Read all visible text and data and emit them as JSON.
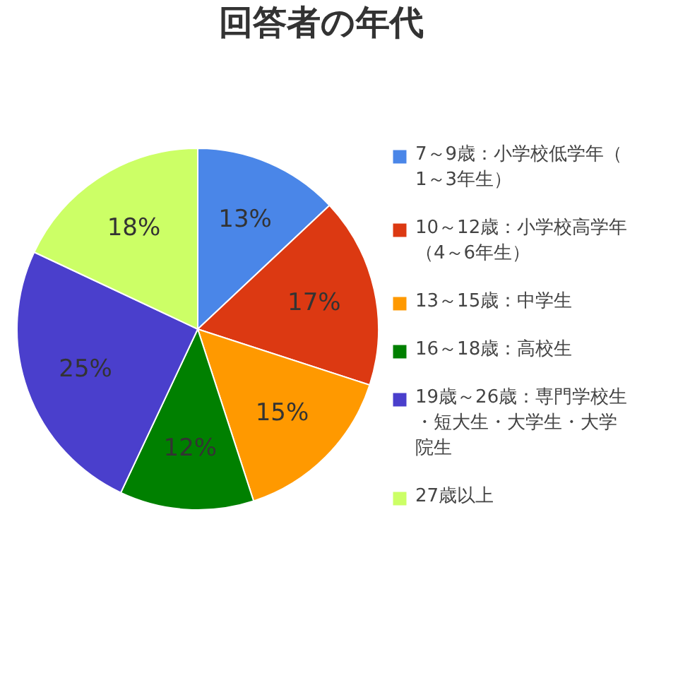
{
  "chart_data": {
    "type": "pie",
    "title": "回答者の年代",
    "categories": [
      "7～9歳：小学校低学年（1～3年生）",
      "10～12歳：小学校高学年（4～6年生）",
      "13～15歳：中学生",
      "16～18歳：高校生",
      "19歳～26歳：専門学校生・短大生・大学生・大学院生",
      "27歳以上"
    ],
    "values": [
      13,
      17,
      15,
      12,
      25,
      18
    ],
    "colors": [
      "#4a86e8",
      "#dc3912",
      "#ff9900",
      "#008000",
      "#4a3fcc",
      "#ccff66"
    ],
    "value_labels": [
      "13%",
      "17%",
      "15%",
      "12%",
      "25%",
      "18%"
    ],
    "legend": "right"
  }
}
